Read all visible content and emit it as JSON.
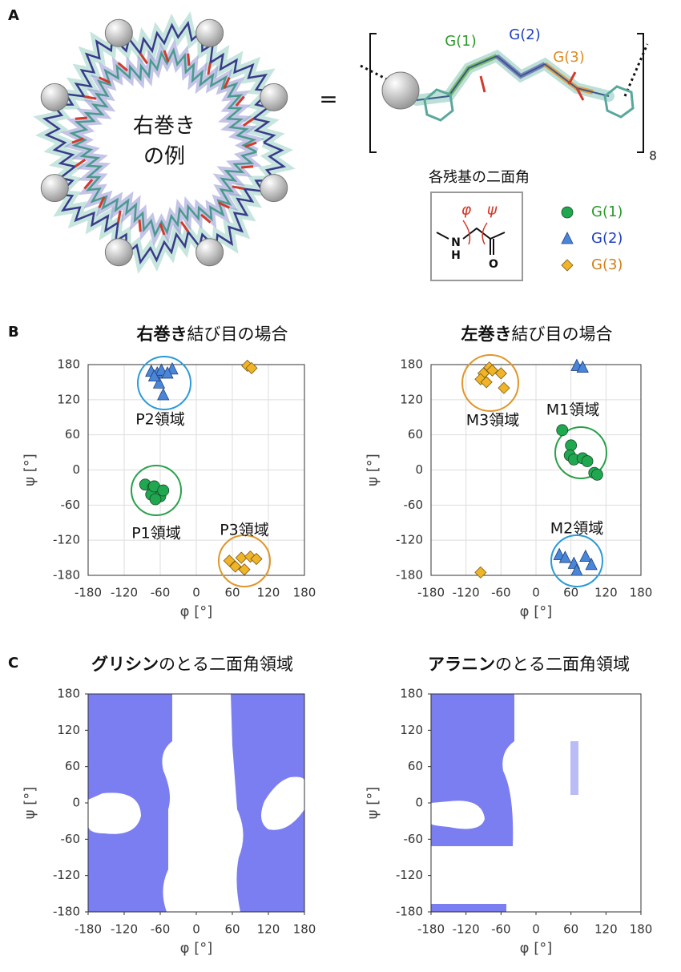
{
  "panel_labels": [
    "A",
    "B",
    "C"
  ],
  "panel_a": {
    "ring_label": [
      "右巻き",
      "の例"
    ],
    "equals": "=",
    "segment_labels": [
      "G(1)",
      "G(2)",
      "G(3)"
    ],
    "repeat": "8",
    "dihedral_title": "各残基の二面角",
    "angle_symbols": [
      "φ",
      "ψ"
    ],
    "atoms": [
      "N",
      "H",
      "O"
    ]
  },
  "chart_data": [
    {
      "type": "scatter",
      "title_bold": "右巻き",
      "title": "結び目の場合",
      "x_label": "φ [°]",
      "y_label": "ψ [°]",
      "xlim": [
        -180,
        180
      ],
      "ylim": [
        -180,
        180
      ],
      "xticks": [
        -180,
        -120,
        -60,
        0,
        60,
        120,
        180
      ],
      "yticks": [
        -180,
        -120,
        -60,
        0,
        60,
        120,
        180
      ],
      "grid": true,
      "series": [
        {
          "name": "G(1)",
          "color": "#1fa84f",
          "marker": "circle",
          "x": [
            -85,
            -72,
            -65,
            -75,
            -60,
            -70,
            -55,
            -68
          ],
          "values": [
            -25,
            -30,
            -38,
            -42,
            -45,
            -28,
            -35,
            -50
          ]
        },
        {
          "name": "G(2)",
          "color": "#4a86d8",
          "marker": "triangle",
          "x": [
            -75,
            -65,
            -58,
            -40,
            -62,
            -55,
            -70,
            -48
          ],
          "values": [
            168,
            165,
            170,
            172,
            148,
            128,
            160,
            165
          ]
        },
        {
          "name": "G(3)",
          "color": "#f0b429",
          "marker": "diamond",
          "x": [
            85,
            92,
            55,
            65,
            75,
            90,
            100,
            80
          ],
          "values": [
            178,
            174,
            -155,
            -165,
            -150,
            -148,
            -152,
            -170
          ]
        }
      ],
      "annotations": [
        "P2領域",
        "P1領域",
        "P3領域"
      ]
    },
    {
      "type": "scatter",
      "title_bold": "左巻き",
      "title": "結び目の場合",
      "x_label": "φ [°]",
      "y_label": "ψ [°]",
      "xlim": [
        -180,
        180
      ],
      "ylim": [
        -180,
        180
      ],
      "xticks": [
        -180,
        -120,
        -60,
        0,
        60,
        120,
        180
      ],
      "yticks": [
        -180,
        -120,
        -60,
        0,
        60,
        120,
        180
      ],
      "grid": true,
      "series": [
        {
          "name": "G(1)",
          "color": "#1fa84f",
          "marker": "circle",
          "x": [
            45,
            60,
            58,
            65,
            80,
            88,
            100,
            105
          ],
          "values": [
            68,
            42,
            25,
            18,
            20,
            15,
            -5,
            -8
          ]
        },
        {
          "name": "G(2)",
          "color": "#4a86d8",
          "marker": "triangle",
          "x": [
            70,
            80,
            40,
            50,
            65,
            70,
            85,
            95
          ],
          "values": [
            178,
            175,
            -145,
            -150,
            -160,
            -172,
            -148,
            -162
          ]
        },
        {
          "name": "G(3)",
          "color": "#f0b429",
          "marker": "diamond",
          "x": [
            -95,
            -90,
            -80,
            -75,
            -95,
            -60,
            -55,
            -85
          ],
          "values": [
            -175,
            165,
            175,
            170,
            155,
            165,
            140,
            150
          ]
        }
      ],
      "annotations": [
        "M3領域",
        "M1領域",
        "M2領域"
      ]
    },
    {
      "type": "region",
      "title_bold": "グリシン",
      "title": "のとる二面角領域",
      "x_label": "φ [°]",
      "y_label": "ψ [°]",
      "xlim": [
        -180,
        180
      ],
      "ylim": [
        -180,
        180
      ],
      "xticks": [
        -180,
        -120,
        -60,
        0,
        60,
        120,
        180
      ],
      "yticks": [
        -180,
        -120,
        -60,
        0,
        60,
        120,
        180
      ],
      "grid": false
    },
    {
      "type": "region",
      "title_bold": "アラニン",
      "title": "のとる二面角領域",
      "x_label": "φ [°]",
      "y_label": "ψ [°]",
      "xlim": [
        -180,
        180
      ],
      "ylim": [
        -180,
        180
      ],
      "xticks": [
        -180,
        -120,
        -60,
        0,
        60,
        120,
        180
      ],
      "yticks": [
        -180,
        -120,
        -60,
        0,
        60,
        120,
        180
      ],
      "grid": false
    }
  ]
}
